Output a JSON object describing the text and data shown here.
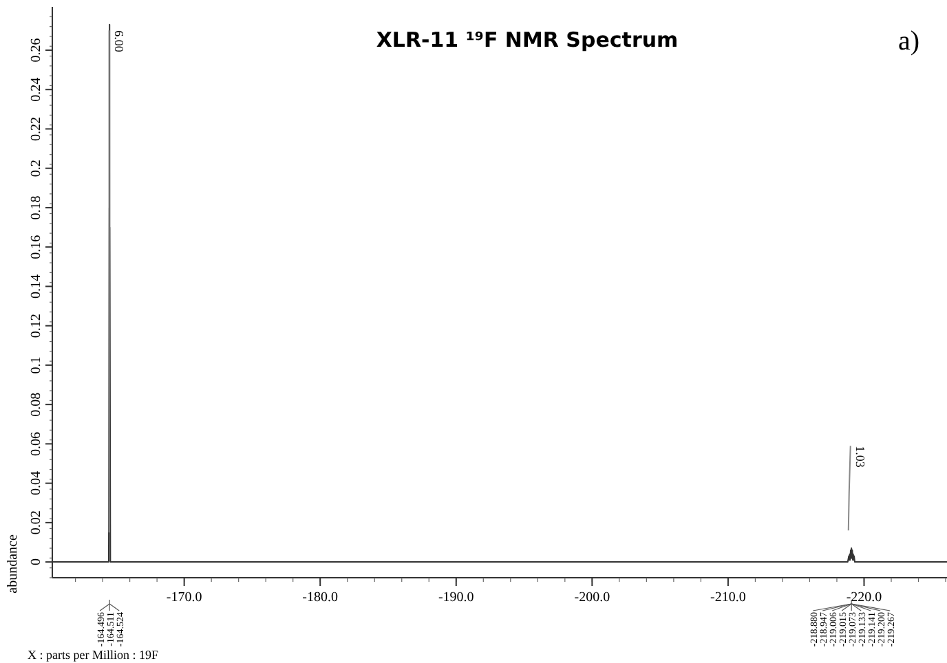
{
  "chart_data": {
    "type": "line",
    "title": "XLR-11 ¹⁹F NMR Spectrum",
    "xlabel": "X : parts per Million : 19F",
    "ylabel": "abundance",
    "xlim": [
      -160.3,
      -226.1
    ],
    "ylim": [
      -0.008,
      0.282
    ],
    "xticks": [
      {
        "value": -170,
        "label": "-170.0"
      },
      {
        "value": -180,
        "label": "-180.0"
      },
      {
        "value": -190,
        "label": "-190.0"
      },
      {
        "value": -200,
        "label": "-200.0"
      },
      {
        "value": -210,
        "label": "-210.0"
      },
      {
        "value": -220,
        "label": "-220.0"
      }
    ],
    "yticks": [
      0,
      0.02,
      0.04,
      0.06,
      0.08,
      0.1,
      0.12,
      0.14,
      0.16,
      0.18,
      0.2,
      0.22,
      0.24,
      0.26
    ],
    "grid": false,
    "line_style": "solid",
    "series": [
      {
        "color": "#333333",
        "x": [
          -160.3,
          -164.45,
          -164.496,
          -164.503,
          -164.511,
          -164.518,
          -164.524,
          -164.57,
          -218.8,
          -218.88,
          -218.91,
          -218.947,
          -218.98,
          -219.006,
          -219.015,
          -219.04,
          -219.073,
          -219.1,
          -219.133,
          -219.141,
          -219.17,
          -219.2,
          -219.23,
          -219.267,
          -219.32,
          -226.1
        ],
        "values": [
          0,
          0,
          0.18,
          0.05,
          0.273,
          0.05,
          0.17,
          0,
          0,
          0.003,
          0.001,
          0.004,
          0.001,
          0.005,
          0.006,
          0.002,
          0.007,
          0.002,
          0.006,
          0.005,
          0.001,
          0.004,
          0.001,
          0.003,
          0,
          0
        ]
      },
      {
        "color": "#888888",
        "x": [
          -164.48,
          -164.48
        ],
        "values": [
          0.015,
          0.27
        ]
      },
      {
        "color": "#888888",
        "x": [
          -218.85,
          -218.9,
          -219.0
        ],
        "values": [
          0.016,
          0.035,
          0.059
        ]
      }
    ],
    "annotations": [
      "a)",
      {
        "text": "6.00",
        "x": -164.48,
        "y": 0.27
      },
      {
        "text": "1.03",
        "x": -219.0,
        "y": 0.059
      },
      {
        "text": "-164.496",
        "x": -164.496
      },
      {
        "text": "-164.511",
        "x": -164.511
      },
      {
        "text": "-164.524",
        "x": -164.524
      },
      {
        "text": "-218.880",
        "x": -218.88
      },
      {
        "text": "-218.947",
        "x": -218.947
      },
      {
        "text": "-219.006",
        "x": -219.006
      },
      {
        "text": "-219.015",
        "x": -219.015
      },
      {
        "text": "-219.073",
        "x": -219.073
      },
      {
        "text": "-219.133",
        "x": -219.133
      },
      {
        "text": "-219.141",
        "x": -219.141
      },
      {
        "text": "-219.200",
        "x": -219.2
      },
      {
        "text": "-219.267",
        "x": -219.267
      }
    ]
  }
}
